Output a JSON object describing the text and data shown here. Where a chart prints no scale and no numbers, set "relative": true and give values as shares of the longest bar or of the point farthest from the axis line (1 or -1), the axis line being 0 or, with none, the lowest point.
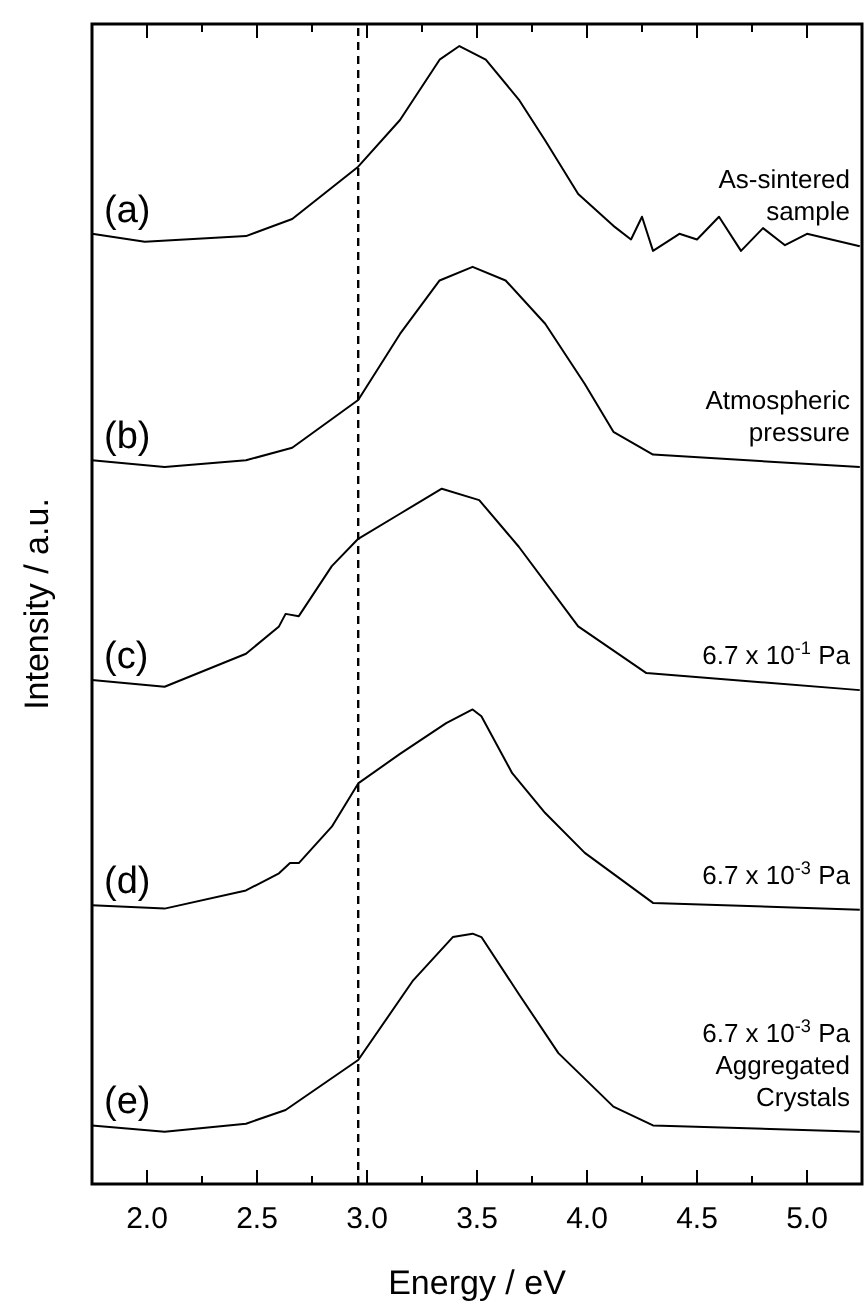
{
  "chart_data": {
    "type": "line",
    "relative": true,
    "xlabel": "Energy / eV",
    "ylabel": "Intensity / a.u.",
    "xlim": [
      1.75,
      5.25
    ],
    "xticks": [
      {
        "value": 1.75,
        "label": null
      },
      {
        "value": 2,
        "label": "2.0"
      },
      {
        "value": 2.25,
        "label": null
      },
      2.5,
      {
        "value": 2.75,
        "label": null
      },
      {
        "value": 3,
        "label": "3.0"
      },
      {
        "value": 3.25,
        "label": null
      },
      3.5,
      {
        "value": 3.75,
        "label": null
      },
      {
        "value": 4,
        "label": "4.0"
      },
      {
        "value": 4.25,
        "label": null
      },
      4.5,
      {
        "value": 4.75,
        "label": null
      },
      {
        "value": 5,
        "label": "5.0"
      },
      {
        "value": 5.25,
        "label": null
      }
    ],
    "line_style": "solid",
    "marker": "none",
    "tick_labels": "x",
    "ref_lines": [
      {
        "axis": "x",
        "value": 2.96,
        "line_style": "dashed",
        "color": "#000000"
      }
    ],
    "series": [
      {
        "name": "(a)",
        "color": "#000000",
        "x": [
          1.75,
          1.99,
          2.45,
          2.66,
          2.96,
          3.15,
          3.33,
          3.42,
          3.54,
          3.69,
          3.81,
          3.96,
          4.12,
          4.2,
          4.25,
          4.3,
          4.42,
          4.5,
          4.6,
          4.7,
          4.8,
          4.9,
          5.0,
          5.24
        ],
        "values": [
          0.835,
          0.828,
          0.833,
          0.848,
          0.894,
          0.935,
          0.988,
          1,
          0.988,
          0.953,
          0.917,
          0.87,
          0.842,
          0.83,
          0.85,
          0.82,
          0.835,
          0.83,
          0.85,
          0.82,
          0.84,
          0.825,
          0.835,
          0.824
        ]
      },
      {
        "name": "(b)",
        "color": "#000000",
        "x": [
          1.75,
          2.08,
          2.45,
          2.66,
          2.96,
          3.15,
          3.33,
          3.48,
          3.63,
          3.81,
          3.99,
          4.12,
          4.3,
          5.24
        ],
        "values": [
          0.636,
          0.63,
          0.636,
          0.647,
          0.689,
          0.747,
          0.794,
          0.806,
          0.794,
          0.756,
          0.703,
          0.661,
          0.641,
          0.63
        ]
      },
      {
        "name": "(c)",
        "color": "#000000",
        "x": [
          1.75,
          2.08,
          2.45,
          2.6,
          2.63,
          2.69,
          2.84,
          2.96,
          3.15,
          3.34,
          3.51,
          3.69,
          3.96,
          4.27,
          5.24
        ],
        "values": [
          0.443,
          0.437,
          0.466,
          0.49,
          0.501,
          0.499,
          0.543,
          0.567,
          0.589,
          0.611,
          0.601,
          0.56,
          0.49,
          0.449,
          0.434
        ]
      },
      {
        "name": "(d)",
        "color": "#000000",
        "x": [
          1.75,
          2.08,
          2.45,
          2.6,
          2.65,
          2.69,
          2.84,
          2.96,
          3.15,
          3.36,
          3.48,
          3.52,
          3.66,
          3.81,
          3.99,
          4.3,
          5.24
        ],
        "values": [
          0.245,
          0.242,
          0.258,
          0.273,
          0.282,
          0.282,
          0.314,
          0.352,
          0.378,
          0.405,
          0.417,
          0.411,
          0.361,
          0.326,
          0.291,
          0.247,
          0.241
        ]
      },
      {
        "name": "(e)",
        "color": "#000000",
        "x": [
          1.75,
          2.08,
          2.45,
          2.63,
          2.96,
          3.21,
          3.39,
          3.48,
          3.52,
          3.69,
          3.87,
          4.12,
          4.3,
          5.24
        ],
        "values": [
          0.0515,
          0.046,
          0.053,
          0.065,
          0.109,
          0.179,
          0.217,
          0.22,
          0.217,
          0.167,
          0.115,
          0.068,
          0.0515,
          0.046
        ]
      }
    ],
    "annotations": [
      "As-sintered\nsample",
      "Atmospheric\npressure",
      "6.7 x 10$^{-1}$ Pa",
      "6.7 x 10$^{-3}$ Pa",
      "6.7 x 10$^{-3}$ Pa\nAggregated\nCrystals"
    ]
  }
}
